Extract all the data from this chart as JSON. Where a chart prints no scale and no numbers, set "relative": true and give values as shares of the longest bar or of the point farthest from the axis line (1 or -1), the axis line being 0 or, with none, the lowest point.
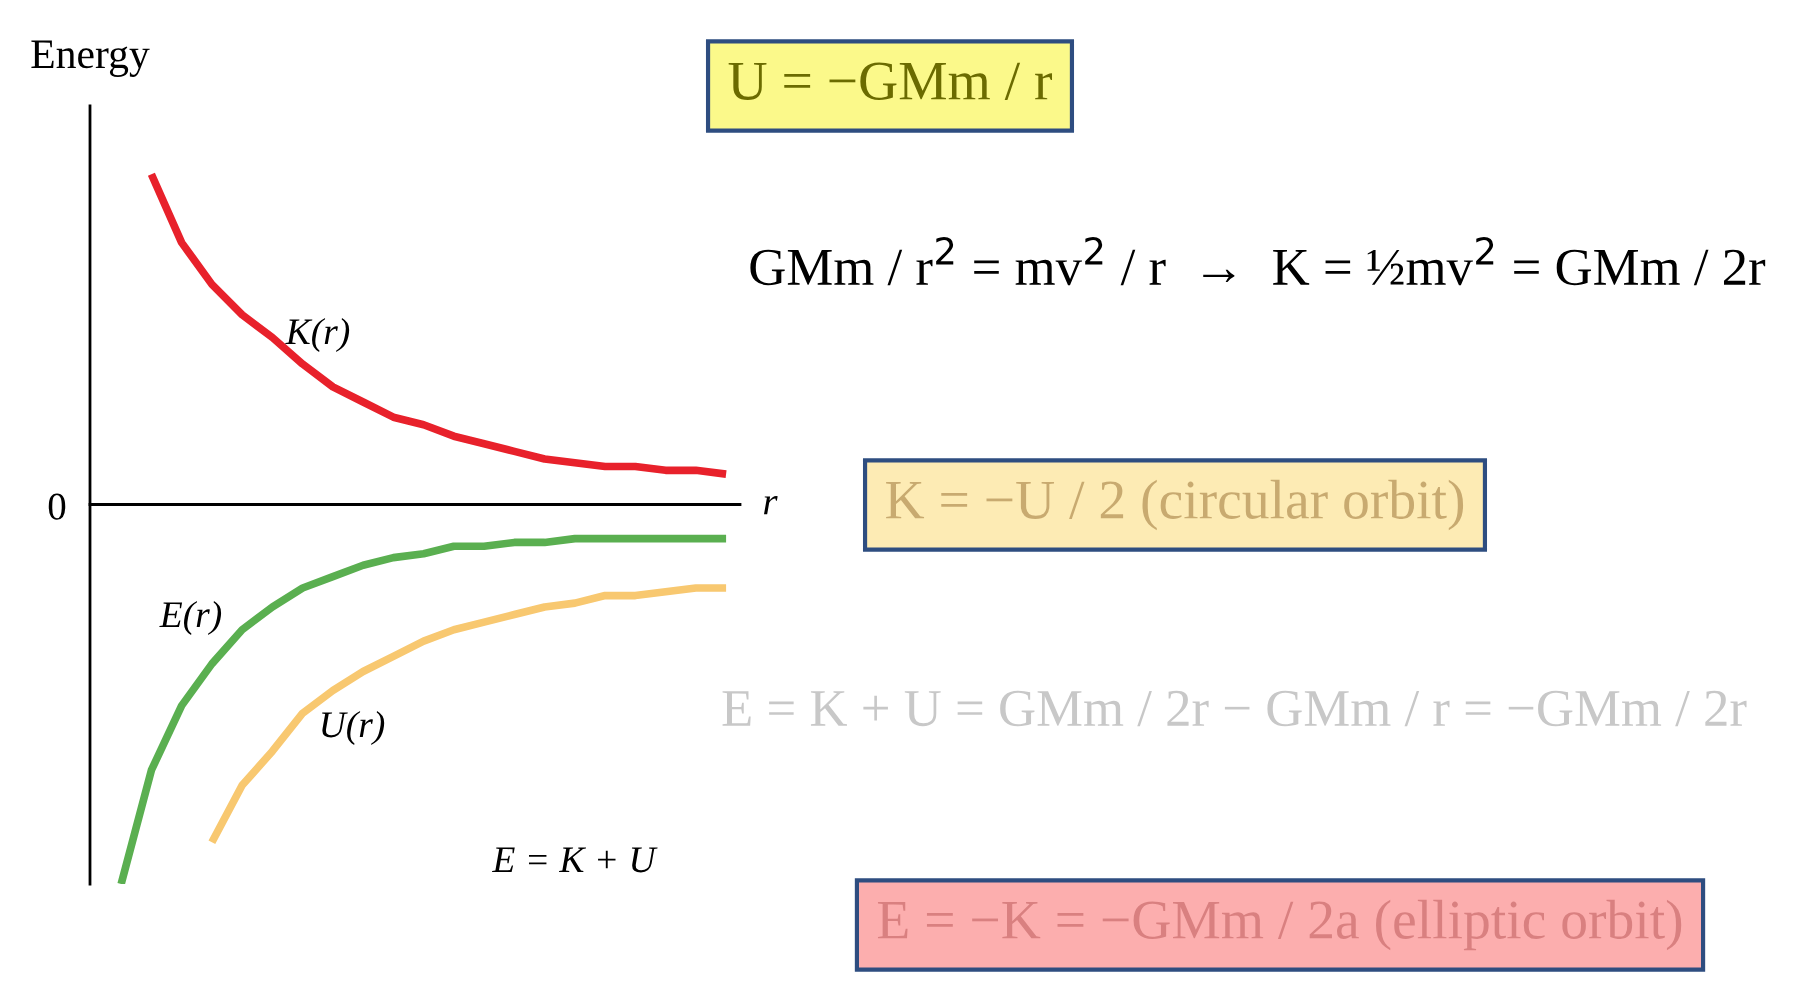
{
  "chart_data": {
    "type": "line",
    "relative": true,
    "ylabel": "Energy",
    "xlabel": "r",
    "legend": false,
    "grid": false,
    "categories": [
      null,
      null,
      null,
      null,
      null,
      null,
      null,
      null,
      null,
      null,
      null,
      null,
      null,
      null,
      null,
      null,
      null,
      null,
      null,
      null,
      null
    ],
    "series": [
      {
        "name": "K(r)",
        "color": "#e8212b",
        "values": [
          null,
          0.87,
          0.69,
          0.58,
          0.5,
          0.44,
          0.37,
          0.31,
          0.27,
          0.23,
          0.21,
          0.18,
          0.16,
          0.14,
          0.12,
          0.11,
          0.1,
          0.1,
          0.09,
          0.09,
          0.08
        ]
      },
      {
        "name": "E(r)",
        "color": "#5aaf50",
        "values": [
          -1,
          -0.7,
          -0.53,
          -0.42,
          -0.33,
          -0.27,
          -0.22,
          -0.19,
          -0.16,
          -0.14,
          -0.13,
          -0.11,
          -0.11,
          -0.1,
          -0.1,
          -0.09,
          -0.09,
          -0.09,
          -0.09,
          -0.09,
          -0.09
        ]
      },
      {
        "name": "U(r)",
        "color": "#f8c870",
        "values": [
          null,
          null,
          null,
          -0.89,
          -0.74,
          -0.65,
          -0.55,
          -0.49,
          -0.44,
          -0.4,
          -0.36,
          -0.33,
          -0.31,
          -0.29,
          -0.27,
          -0.26,
          -0.24,
          -0.24,
          -0.23,
          -0.22,
          -0.22
        ]
      }
    ],
    "annotations": [
      "0",
      "E = K + U",
      "U = −GMm / r",
      "GMm / r$^{2}$ = mv$^{2}$ / r  →  K = ½mv$^{2}$ = GMm / 2r",
      "K = −U / 2 (circular orbit)",
      "E = K + U = GMm / 2r − GMm / r = −GMm / 2r",
      "E = −K = −GMm / 2a (elliptic orbit)"
    ]
  }
}
